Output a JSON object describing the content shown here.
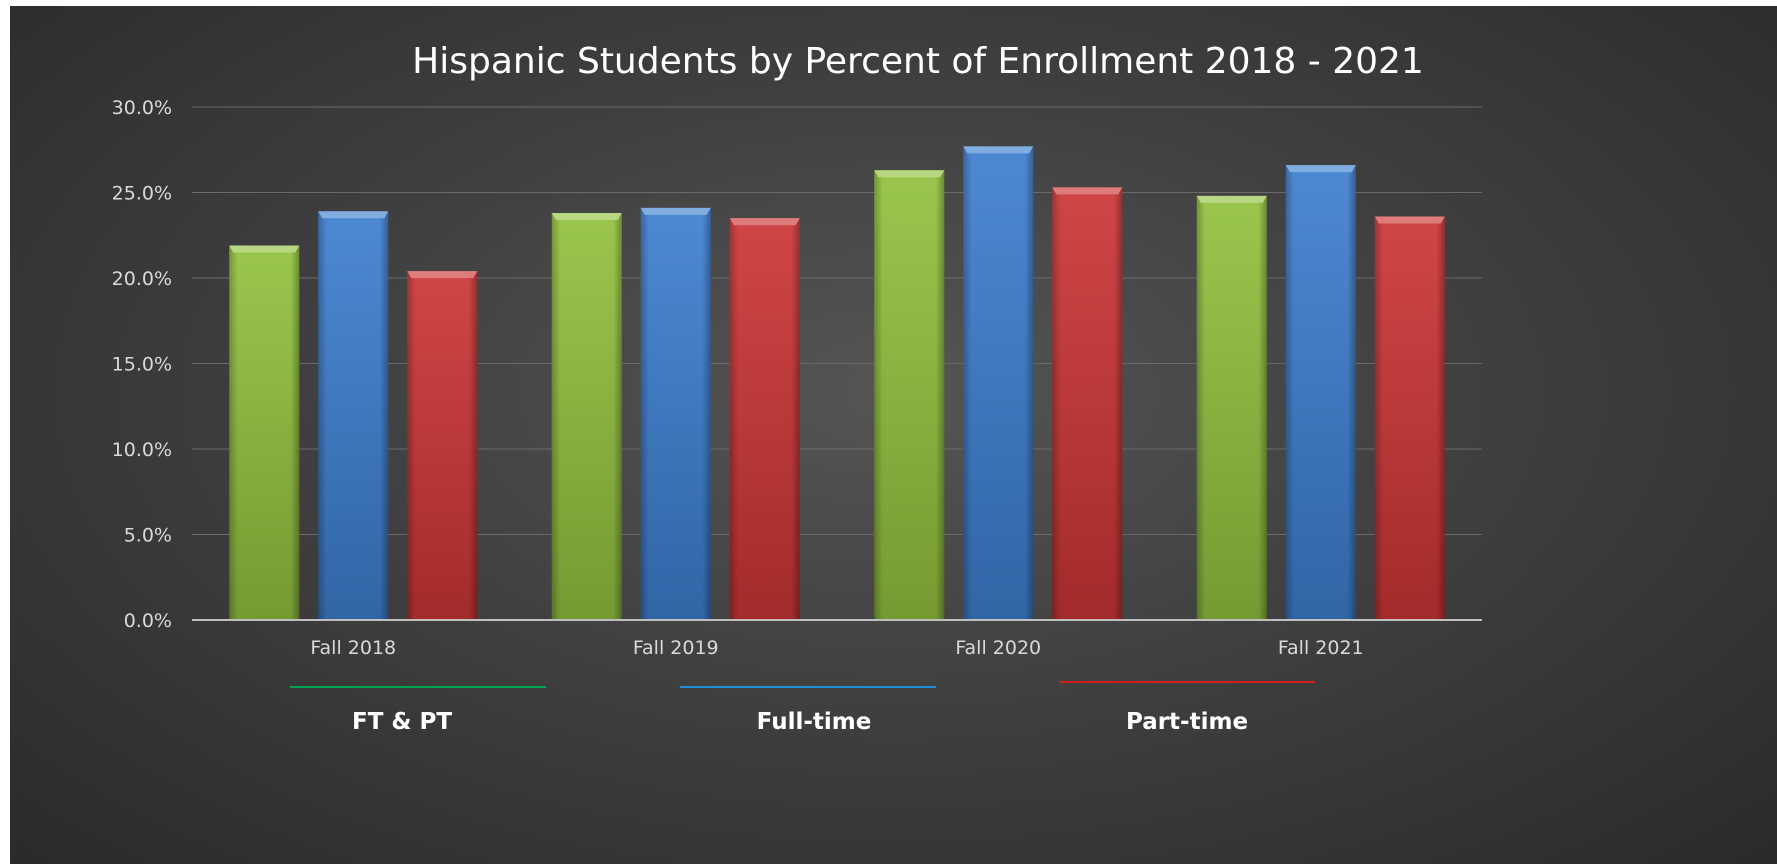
{
  "chart_data": {
    "type": "bar",
    "title": "Hispanic Students by Percent of Enrollment 2018 - 2021",
    "xlabel": "",
    "ylabel": "",
    "categories": [
      "Fall 2018",
      "Fall 2019",
      "Fall 2020",
      "Fall 2021"
    ],
    "series": [
      {
        "name": "FT & PT",
        "values": [
          21.9,
          23.8,
          26.3,
          24.8
        ],
        "color": "#92c13e",
        "legend_line_color": "#00a651"
      },
      {
        "name": "Full-time",
        "values": [
          23.9,
          24.1,
          27.7,
          26.6
        ],
        "color": "#3d7fcf",
        "legend_line_color": "#1f8fd8"
      },
      {
        "name": "Part-time",
        "values": [
          20.4,
          23.5,
          25.3,
          23.6
        ],
        "color": "#cc3636",
        "legend_line_color": "#d11f1f"
      }
    ],
    "ylim": [
      0,
      30
    ],
    "yticks": [
      "0.0%",
      "5.0%",
      "10.0%",
      "15.0%",
      "20.0%",
      "25.0%",
      "30.0%"
    ],
    "grid": true,
    "legend_position": "bottom"
  }
}
